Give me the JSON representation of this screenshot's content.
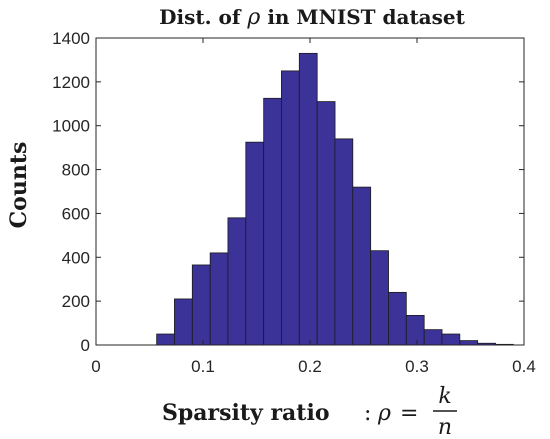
{
  "chart_data": {
    "type": "bar",
    "title_prefix": "Dist. of",
    "title_symbol": "ρ",
    "title_suffix": "in MNIST dataset",
    "ylabel": "Counts",
    "xlabel_text": "Sparsity ratio",
    "xlabel_colon": ":",
    "xlabel_symbol": "ρ",
    "xlabel_equals": "=",
    "xlabel_numerator": "k",
    "xlabel_denominator": "n",
    "xlim": [
      0,
      0.4
    ],
    "ylim": [
      0,
      1400
    ],
    "xticks": [
      0,
      0.1,
      0.2,
      0.3,
      0.4
    ],
    "xtick_labels": [
      "0",
      "0.1",
      "0.2",
      "0.3",
      "0.4"
    ],
    "yticks": [
      0,
      200,
      400,
      600,
      800,
      1000,
      1200,
      1400
    ],
    "ytick_labels": [
      "0",
      "200",
      "400",
      "600",
      "800",
      "1000",
      "1200",
      "1400"
    ],
    "bin_width": 0.0167,
    "bins": [
      {
        "x0": 0.0567,
        "count": 50
      },
      {
        "x0": 0.0733,
        "count": 210
      },
      {
        "x0": 0.09,
        "count": 365
      },
      {
        "x0": 0.1067,
        "count": 420
      },
      {
        "x0": 0.1233,
        "count": 580
      },
      {
        "x0": 0.14,
        "count": 925
      },
      {
        "x0": 0.1567,
        "count": 1125
      },
      {
        "x0": 0.1733,
        "count": 1250
      },
      {
        "x0": 0.19,
        "count": 1330
      },
      {
        "x0": 0.2067,
        "count": 1110
      },
      {
        "x0": 0.2233,
        "count": 940
      },
      {
        "x0": 0.24,
        "count": 720
      },
      {
        "x0": 0.2567,
        "count": 430
      },
      {
        "x0": 0.2733,
        "count": 240
      },
      {
        "x0": 0.29,
        "count": 135
      },
      {
        "x0": 0.3067,
        "count": 70
      },
      {
        "x0": 0.3233,
        "count": 50
      },
      {
        "x0": 0.34,
        "count": 20
      },
      {
        "x0": 0.3567,
        "count": 8
      },
      {
        "x0": 0.3733,
        "count": 3
      }
    ],
    "bar_color": "#3c3399",
    "bar_edge_color": "#1a1a1a",
    "grid": false,
    "box": true
  }
}
